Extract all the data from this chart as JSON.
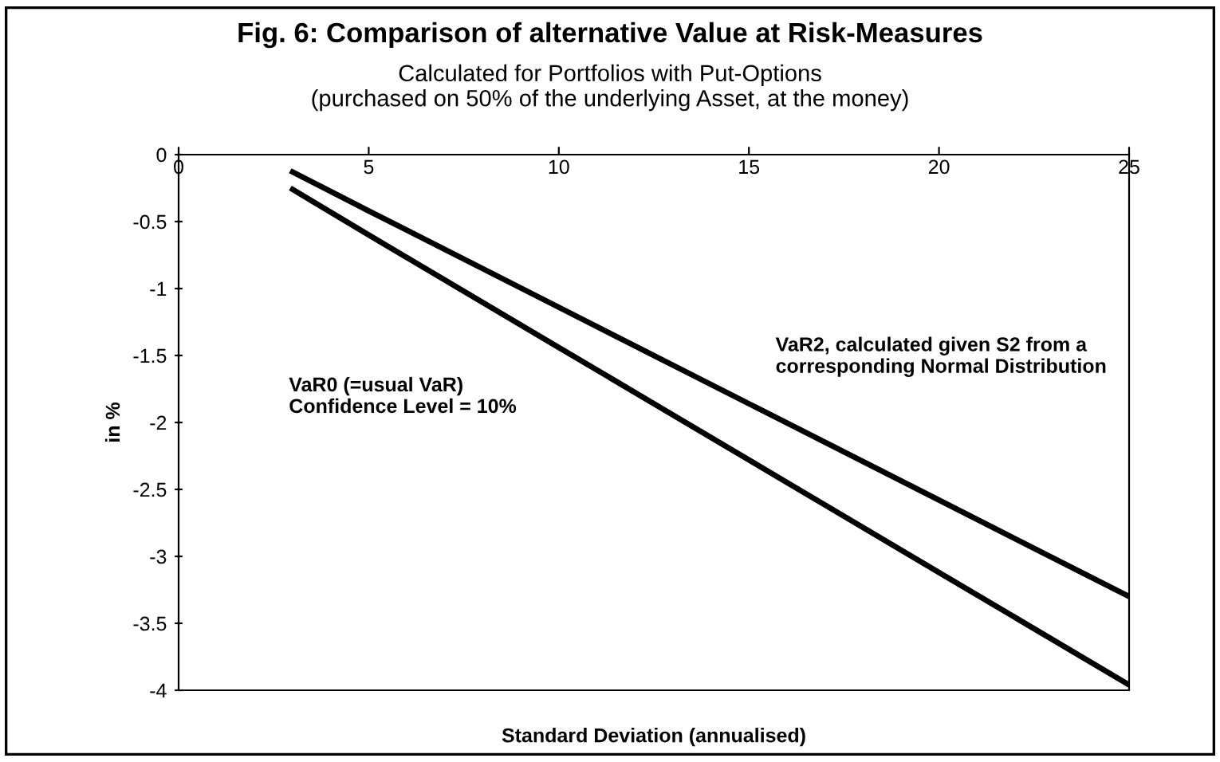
{
  "chart_data": {
    "type": "line",
    "title": "Fig. 6: Comparison of alternative Value at Risk-Measures",
    "subtitle": "Calculated for Portfolios with Put-Options\n(purchased on 50% of the underlying Asset, at the money)",
    "xlabel": "Standard Deviation (annualised)",
    "ylabel": "in %",
    "xlim": [
      0,
      25
    ],
    "ylim": [
      -4,
      0
    ],
    "xticks": [
      0,
      5,
      10,
      15,
      20,
      25
    ],
    "yticks": [
      -4,
      -3.5,
      -3,
      -2.5,
      -2,
      -1.5,
      -1,
      -0.5,
      0
    ],
    "grid": false,
    "legend": false,
    "marker": "none",
    "line_style": "solid",
    "series": [
      {
        "color": "#000000",
        "x": [
          3,
          5,
          10,
          15,
          20,
          25
        ],
        "values": [
          -0.13,
          -0.42,
          -1.14,
          -1.86,
          -2.58,
          -3.3
        ]
      },
      {
        "color": "#000000",
        "x": [
          3,
          5,
          10,
          15,
          20,
          25
        ],
        "values": [
          -0.26,
          -0.6,
          -1.44,
          -2.28,
          -3.12,
          -3.96
        ]
      }
    ],
    "annotations": [
      "VaR2, calculated given S2 from a\ncorresponding Normal Distribution",
      "VaR0 (=usual VaR)\nConfidence Level = 10%"
    ]
  }
}
